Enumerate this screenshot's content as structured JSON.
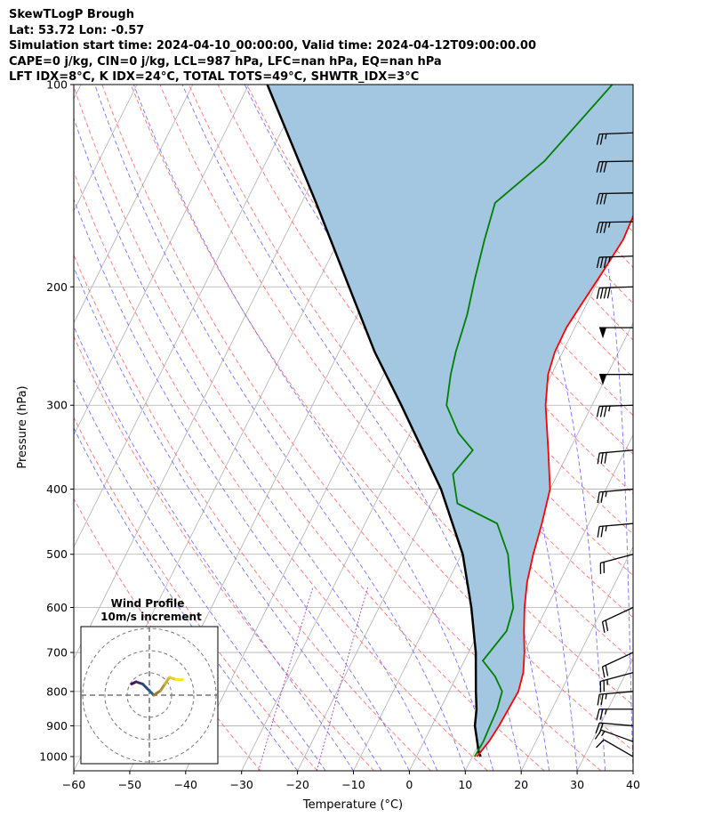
{
  "header": {
    "line1": "SkewTLogP Brough",
    "line2": "Lat: 53.72   Lon: -0.57",
    "line3": "Simulation start time: 2024-04-10_00:00:00, Valid time: 2024-04-12T09:00:00.00",
    "line4": "CAPE=0 j/kg, CIN=0 j/kg, LCL=987 hPa, LFC=nan hPa, EQ=nan hPa",
    "line5": "LFT IDX=8°C, K IDX=24°C, TOTAL TOTS=49°C, SHWTR_IDX=3°C"
  },
  "chart_data": {
    "type": "line",
    "xlabel": "Temperature (°C)",
    "ylabel": "Pressure (hPa)",
    "xlim": [
      -60,
      40
    ],
    "ylim": [
      1050,
      100
    ],
    "yscale": "log",
    "x_ticks": [
      "−60",
      "−50",
      "−40",
      "−30",
      "−20",
      "−10",
      "0",
      "10",
      "20",
      "30",
      "40"
    ],
    "y_ticks": [
      "100",
      "200",
      "300",
      "400",
      "500",
      "600",
      "700",
      "800",
      "900",
      "1000"
    ],
    "grid": true,
    "colors": {
      "temperature": "#ff0000",
      "dewpoint": "#008000",
      "parcel": "#000000",
      "cape_fill": "#a3c7e0",
      "dry_adiabat": "#ff6666",
      "moist_adiabat": "#6666ff",
      "mixing_ratio": "#a040c0"
    },
    "series": [
      {
        "points": [
          [
            1000,
            10.8
          ],
          [
            950,
            11.6
          ],
          [
            900,
            12.0
          ],
          [
            850,
            12.2
          ],
          [
            800,
            12.4
          ],
          [
            750,
            11.6
          ],
          [
            700,
            10.0
          ],
          [
            650,
            8.0
          ],
          [
            600,
            6.0
          ],
          [
            550,
            4.2
          ],
          [
            500,
            2.8
          ],
          [
            450,
            1.6
          ],
          [
            400,
            0.0
          ],
          [
            350,
            -3.8
          ],
          [
            300,
            -8.3
          ],
          [
            270,
            -10.6
          ],
          [
            250,
            -11.4
          ],
          [
            230,
            -11.5
          ],
          [
            215,
            -11.0
          ],
          [
            190,
            -10.0
          ],
          [
            170,
            -9.2
          ],
          [
            150,
            -9.7
          ],
          [
            125,
            -10.9
          ],
          [
            110,
            -11.8
          ],
          [
            100,
            -12.7
          ]
        ]
      },
      {
        "points": [
          [
            1000,
            10.4
          ],
          [
            950,
            10.6
          ],
          [
            900,
            10.4
          ],
          [
            850,
            10.2
          ],
          [
            800,
            9.5
          ],
          [
            760,
            6.9
          ],
          [
            720,
            3.3
          ],
          [
            650,
            4.9
          ],
          [
            600,
            4.0
          ],
          [
            550,
            1.2
          ],
          [
            500,
            -1.7
          ],
          [
            450,
            -6.4
          ],
          [
            420,
            -15.3
          ],
          [
            380,
            -18.7
          ],
          [
            350,
            -17.3
          ],
          [
            330,
            -21.4
          ],
          [
            300,
            -26.0
          ],
          [
            270,
            -28.0
          ],
          [
            250,
            -29.1
          ],
          [
            220,
            -30.4
          ],
          [
            195,
            -32.2
          ],
          [
            170,
            -34.0
          ],
          [
            150,
            -35.4
          ],
          [
            130,
            -30.3
          ],
          [
            100,
            -25.0
          ]
        ]
      },
      {
        "points": [
          [
            1000,
            11.5
          ],
          [
            987,
            10.8
          ],
          [
            900,
            7.7
          ],
          [
            850,
            6.5
          ],
          [
            800,
            4.8
          ],
          [
            700,
            1.3
          ],
          [
            600,
            -3.5
          ],
          [
            500,
            -9.8
          ],
          [
            400,
            -19.5
          ],
          [
            300,
            -34.1
          ],
          [
            250,
            -43.6
          ],
          [
            200,
            -54.0
          ],
          [
            150,
            -67.4
          ],
          [
            100,
            -86.7
          ]
        ]
      }
    ],
    "wind_barbs": [
      {
        "p": 1000,
        "speed_kt": 10,
        "dir_deg": 240
      },
      {
        "p": 950,
        "speed_kt": 15,
        "dir_deg": 250
      },
      {
        "p": 900,
        "speed_kt": 20,
        "dir_deg": 265
      },
      {
        "p": 850,
        "speed_kt": 25,
        "dir_deg": 270
      },
      {
        "p": 800,
        "speed_kt": 25,
        "dir_deg": 275
      },
      {
        "p": 750,
        "speed_kt": 25,
        "dir_deg": 285
      },
      {
        "p": 700,
        "speed_kt": 20,
        "dir_deg": 295
      },
      {
        "p": 600,
        "speed_kt": 20,
        "dir_deg": 295
      },
      {
        "p": 500,
        "speed_kt": 20,
        "dir_deg": 285
      },
      {
        "p": 450,
        "speed_kt": 25,
        "dir_deg": 275
      },
      {
        "p": 400,
        "speed_kt": 25,
        "dir_deg": 275
      },
      {
        "p": 350,
        "speed_kt": 30,
        "dir_deg": 275
      },
      {
        "p": 300,
        "speed_kt": 35,
        "dir_deg": 272
      },
      {
        "p": 270,
        "speed_kt": 50,
        "dir_deg": 270
      },
      {
        "p": 230,
        "speed_kt": 50,
        "dir_deg": 270
      },
      {
        "p": 200,
        "speed_kt": 40,
        "dir_deg": 272
      },
      {
        "p": 180,
        "speed_kt": 35,
        "dir_deg": 272
      },
      {
        "p": 160,
        "speed_kt": 35,
        "dir_deg": 271
      },
      {
        "p": 145,
        "speed_kt": 30,
        "dir_deg": 271
      },
      {
        "p": 130,
        "speed_kt": 30,
        "dir_deg": 271
      },
      {
        "p": 118,
        "speed_kt": 25,
        "dir_deg": 272
      }
    ],
    "inset": {
      "title": "Wind Profile",
      "subtitle": "10m/s increment",
      "hodograph": [
        [
          -8,
          5
        ],
        [
          -6,
          6
        ],
        [
          -3,
          5
        ],
        [
          0,
          2
        ],
        [
          2,
          0
        ],
        [
          5,
          2
        ],
        [
          7,
          5
        ],
        [
          9,
          8
        ],
        [
          12,
          7
        ],
        [
          15,
          7
        ]
      ]
    }
  }
}
